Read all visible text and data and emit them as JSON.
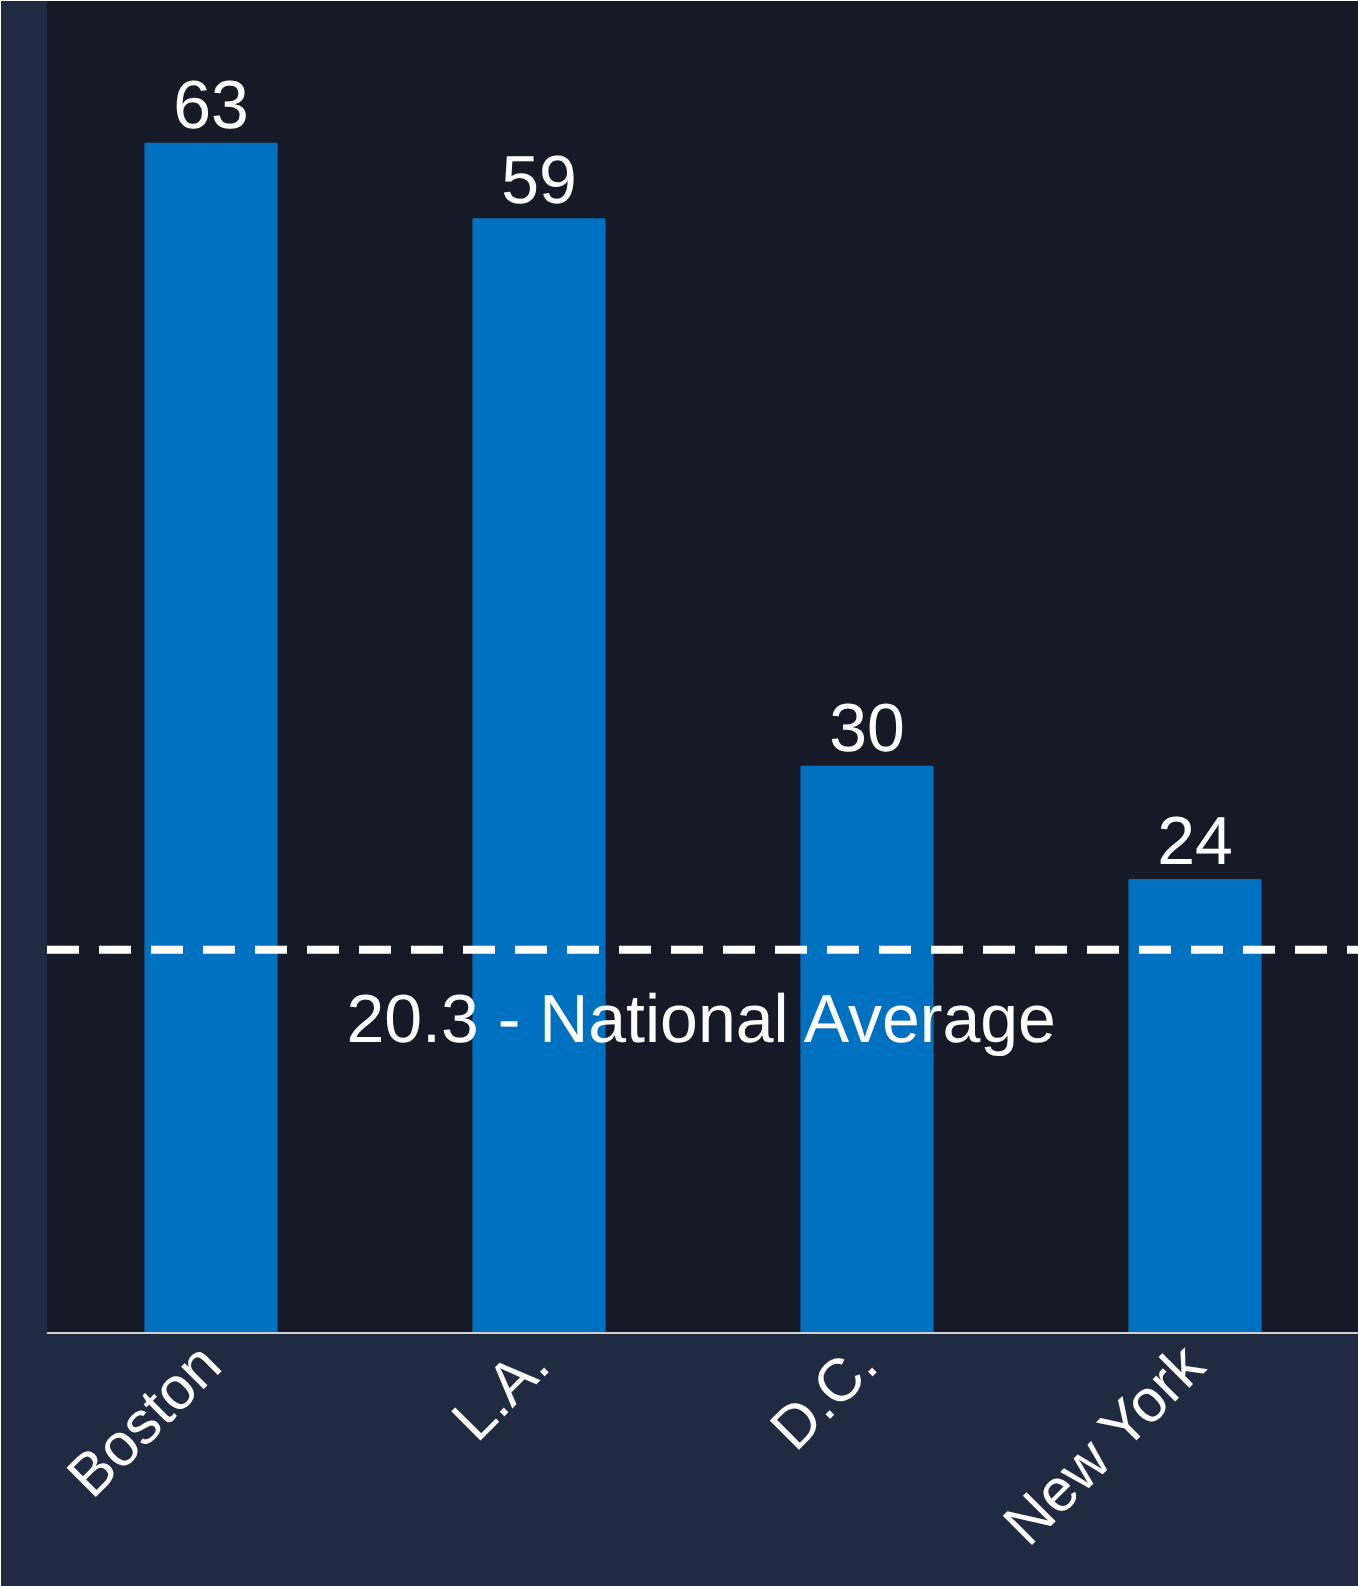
{
  "chart_data": {
    "type": "bar",
    "categories": [
      "Boston",
      "L.A.",
      "D.C.",
      "New York"
    ],
    "values": [
      63,
      59,
      30,
      24
    ],
    "color": "#0070c0",
    "data_labels": true,
    "ref_lines": [
      {
        "axis": "y",
        "value": 20.3,
        "label": "20.3 - National Average",
        "color": "#ffffff",
        "line_style": "dashed"
      }
    ]
  }
}
